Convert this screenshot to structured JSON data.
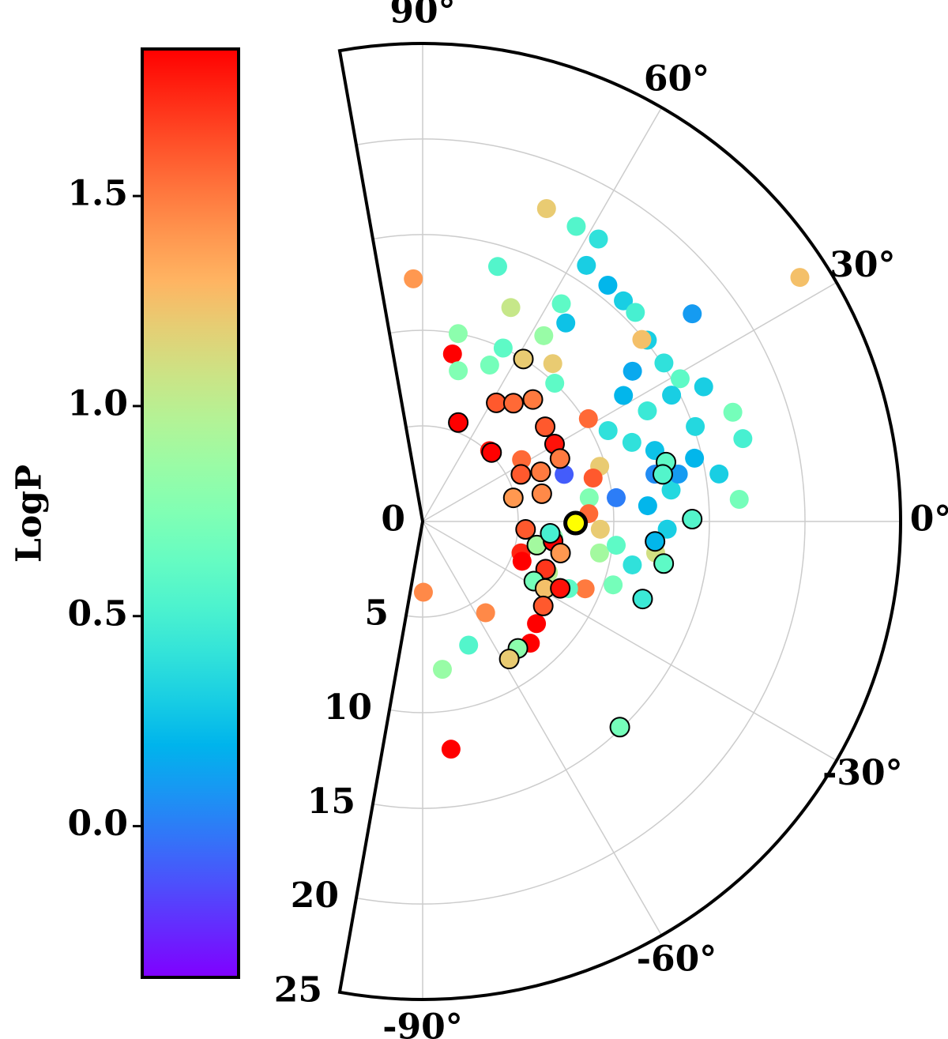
{
  "chart_data": {
    "type": "polar-scatter",
    "thetalim": [
      -100,
      100
    ],
    "rlim": [
      0,
      25
    ],
    "rticks": [
      0,
      5,
      10,
      15,
      20,
      25
    ],
    "thetaticks": [
      {
        "value": -90,
        "label": "-90°"
      },
      {
        "value": -60,
        "label": "-60°"
      },
      {
        "value": -30,
        "label": "-30°"
      },
      {
        "value": 0,
        "label": "0°"
      },
      {
        "value": 30,
        "label": "30°"
      },
      {
        "value": 60,
        "label": "60°"
      },
      {
        "value": 90,
        "label": "90°"
      }
    ],
    "grid": true,
    "colorbar": {
      "label": "LogP",
      "colormap": "rainbow",
      "clim": [
        -0.36,
        1.85
      ],
      "ticks": [
        {
          "value": 0,
          "label": "0.0"
        },
        0.5,
        {
          "value": 1,
          "label": "1.0"
        },
        1.5
      ]
    },
    "series": [
      {
        "edgecolor": "none",
        "theta": [
          32.9,
          92.2,
          68.4,
          62.5,
          58.1,
          73.6,
          67.6,
          57.5,
          54.2,
          56.9,
          79.9,
          79.3,
          65.1,
          57.4,
          51.9,
          47.7,
          44.5,
          37.6,
          38.9,
          33.3,
          35.6,
          29.0,
          25.6,
          19.4,
          14.5,
          19.2,
          13.1,
          9.1,
          4.0,
          11.5,
          7.0,
          20.7,
          17.3,
          31.8,
          18.4,
          14.3,
          8.1,
          2.7,
          -10.1,
          -11.7,
          -7.7,
          -7.0,
          -22.5,
          -18.4,
          -24.7,
          -41.9,
          -48.5,
          -55.4,
          -69.6,
          -82.4,
          -82.9,
          -89.4,
          -17.7,
          -21.8,
          46.6,
          32.0,
          46.3,
          50.5,
          76.7,
          66.8,
          4.0,
          7.2,
          -1.8,
          -6.9,
          -22.1,
          -2.5,
          26.9,
          26.2,
          32.1,
          17.0,
          10.5,
          26.1,
          39.7
        ],
        "r": [
          23.5,
          12.7,
          17.6,
          17.4,
          17.4,
          13.9,
          12.1,
          13.5,
          12.8,
          11.6,
          8.9,
          10.0,
          10.0,
          15.9,
          15.7,
          15.6,
          15.6,
          17.8,
          15.1,
          15.1,
          13.5,
          15.4,
          16.3,
          17.2,
          17.3,
          15.1,
          14.6,
          15.7,
          16.6,
          12.4,
          10.2,
          11.7,
          9.7,
          10.2,
          7.8,
          9.2,
          8.8,
          8.7,
          9.4,
          11.2,
          12.3,
          10.2,
          9.2,
          10.5,
          8.4,
          8.0,
          8.5,
          5.8,
          6.9,
          7.8,
          12.0,
          3.7,
          5.4,
          5.6,
          5.1,
          6.1,
          10.0,
          10.7,
          8.1,
          8.9,
          11.8,
          13.1,
          12.8,
          6.9,
          7.1,
          9.3,
          14.6,
          13.1,
          12.4,
          12.7,
          13.6,
          10.8,
          14.9
        ],
        "logp": [
          1.25,
          1.4,
          1.2,
          0.55,
          0.4,
          0.55,
          1.05,
          0.6,
          0.25,
          0.85,
          1.85,
          0.8,
          0.6,
          0.3,
          0.2,
          0.3,
          0.5,
          0.1,
          0.3,
          0.4,
          0.15,
          0.6,
          0.3,
          0.7,
          0.5,
          0.35,
          0.2,
          0.3,
          0.7,
          0.05,
          0.0,
          0.4,
          1.2,
          1.55,
          -0.1,
          1.6,
          0.75,
          1.55,
          0.9,
          0.4,
          1.1,
          0.6,
          1.5,
          0.7,
          0.6,
          1.85,
          1.85,
          1.45,
          0.55,
          0.85,
          1.85,
          1.45,
          1.75,
          1.9,
          1.8,
          1.55,
          0.6,
          1.2,
          0.75,
          0.7,
          0.2,
          0.35,
          0.3,
          0.8,
          1.0,
          1.2,
          0.3,
          0.45,
          0.2,
          0.25,
          0.1,
          0.4,
          1.25
        ]
      },
      {
        "edgecolor": "#000000",
        "theta": [
          58.2,
          58.2,
          52.5,
          47.9,
          70.2,
          45.0,
          37.7,
          30.4,
          24.6,
          22.8,
          25.6,
          14.6,
          13.1,
          -4.4,
          -11.7,
          -8.6,
          -12.9,
          -21.2,
          -28.2,
          -28.7,
          -25.9,
          -35.0,
          -53.1,
          -57.8,
          -46.2,
          13.7,
          11.1,
          0.5,
          -4.9,
          -9.9,
          -19.4,
          -5.3
        ],
        "r": [
          10.0,
          7.3,
          7.8,
          8.6,
          5.5,
          5.1,
          8.1,
          8.0,
          7.9,
          6.7,
          5.7,
          4.9,
          6.4,
          5.4,
          6.1,
          6.9,
          7.4,
          6.9,
          6.6,
          7.3,
          8.0,
          7.7,
          8.3,
          8.5,
          14.9,
          13.1,
          12.8,
          14.1,
          12.2,
          12.8,
          12.2,
          6.7
        ],
        "logp": [
          1.2,
          1.6,
          1.55,
          1.5,
          1.85,
          1.85,
          1.6,
          1.8,
          1.5,
          1.5,
          1.6,
          1.4,
          1.45,
          1.6,
          0.9,
          1.85,
          1.4,
          1.7,
          0.7,
          1.25,
          1.8,
          1.6,
          0.8,
          1.2,
          0.7,
          0.6,
          0.55,
          0.55,
          0.2,
          0.6,
          0.45,
          0.5
        ]
      },
      {
        "edgecolor": "#000000",
        "color": "#ffff00",
        "theta": [
          -0.6
        ],
        "r": [
          8.0
        ]
      }
    ]
  }
}
